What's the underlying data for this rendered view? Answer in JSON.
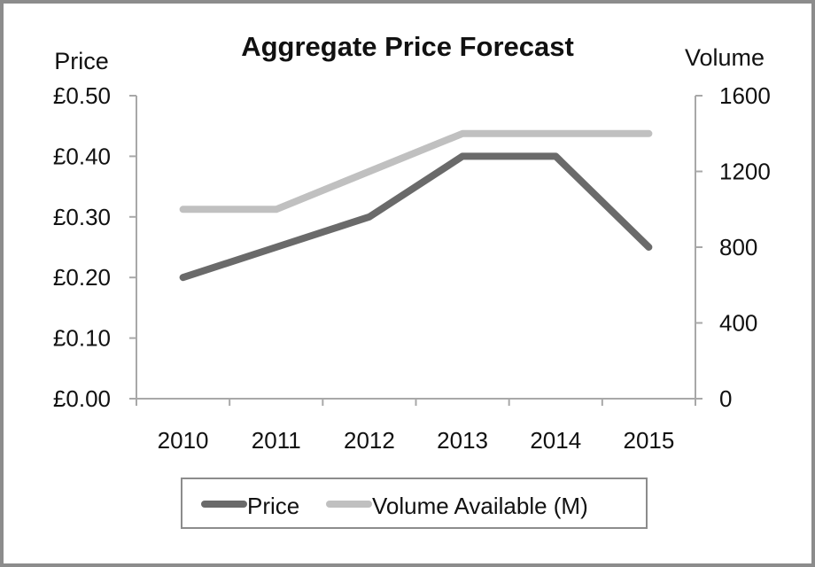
{
  "chart_data": {
    "type": "line",
    "title": "Aggregate Price Forecast",
    "x": [
      "2010",
      "2011",
      "2012",
      "2013",
      "2014",
      "2015"
    ],
    "y_left": {
      "label": "Price",
      "ylim": [
        0,
        0.5
      ],
      "ticks": [
        0,
        0.1,
        0.2,
        0.3,
        0.4,
        0.5
      ],
      "tick_labels": [
        "£0.00",
        "£0.10",
        "£0.20",
        "£0.30",
        "£0.40",
        "£0.50"
      ]
    },
    "y_right": {
      "label": "Volume",
      "ylim": [
        0,
        1600
      ],
      "ticks": [
        0,
        400,
        800,
        1200,
        1600
      ],
      "tick_labels": [
        "0",
        "400",
        "800",
        "1200",
        "1600"
      ]
    },
    "series": [
      {
        "name": "Price",
        "axis": "left",
        "color": "#6a6a6a",
        "values": [
          0.2,
          0.25,
          0.3,
          0.4,
          0.4,
          0.25
        ]
      },
      {
        "name": "Volume Available (M)",
        "axis": "right",
        "color": "#c0c0c0",
        "values": [
          1000,
          1000,
          1200,
          1400,
          1400,
          1400
        ]
      }
    ],
    "grid": false,
    "legend_position": "bottom"
  }
}
